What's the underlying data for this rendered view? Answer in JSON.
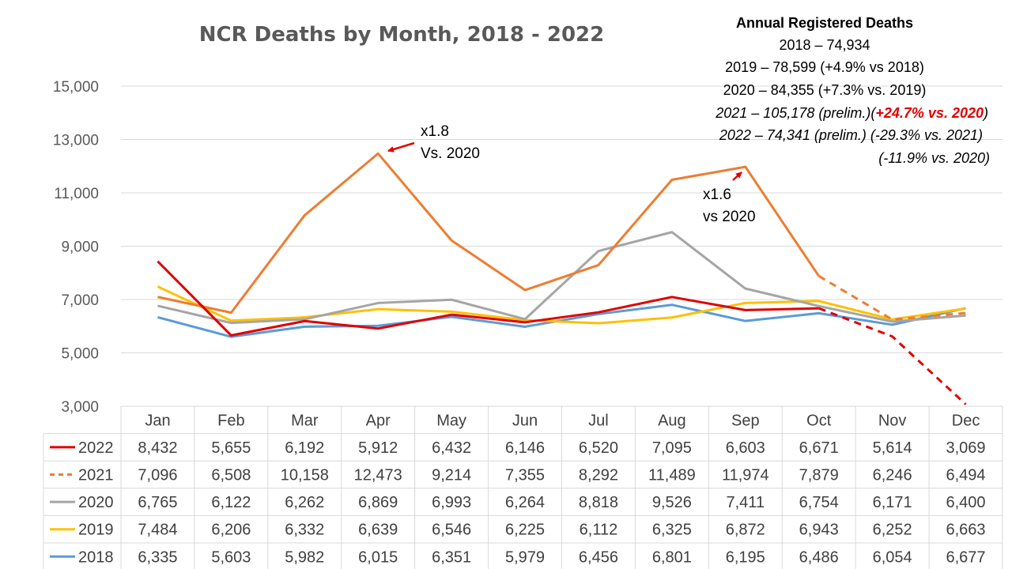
{
  "chart_data": {
    "type": "line",
    "title": "NCR Deaths by Month, 2018 - 2022",
    "categories": [
      "Jan",
      "Feb",
      "Mar",
      "Apr",
      "May",
      "Jun",
      "Jul",
      "Aug",
      "Sep",
      "Oct",
      "Nov",
      "Dec"
    ],
    "ylim": [
      3000,
      15000
    ],
    "yticks": [
      3000,
      5000,
      7000,
      9000,
      11000,
      13000,
      15000
    ],
    "ytick_labels": [
      "3,000",
      "5,000",
      "7,000",
      "9,000",
      "11,000",
      "13,000",
      "15,000"
    ],
    "grid": true,
    "legend_placement": "bottom data table",
    "series": [
      {
        "name": "2022",
        "color": "#E00000",
        "dashed_from_index": 9,
        "values": [
          8432,
          5655,
          6192,
          5912,
          6432,
          6146,
          6520,
          7095,
          6603,
          6671,
          5614,
          3069
        ],
        "labels": [
          "8,432",
          "5,655",
          "6,192",
          "5,912",
          "6,432",
          "6,146",
          "6,520",
          "7,095",
          "6,603",
          "6,671",
          "5,614",
          "3,069"
        ]
      },
      {
        "name": "2021",
        "color": "#ED7D31",
        "dashed_from_index": 9,
        "values": [
          7096,
          6508,
          10158,
          12473,
          9214,
          7355,
          8292,
          11489,
          11974,
          7879,
          6246,
          6494
        ],
        "labels": [
          "7,096",
          "6,508",
          "10,158",
          "12,473",
          "9,214",
          "7,355",
          "8,292",
          "11,489",
          "11,974",
          "7,879",
          "6,246",
          "6,494"
        ]
      },
      {
        "name": "2020",
        "color": "#A5A5A5",
        "values": [
          6765,
          6122,
          6262,
          6869,
          6993,
          6264,
          8818,
          9526,
          7411,
          6754,
          6171,
          6400
        ],
        "labels": [
          "6,765",
          "6,122",
          "6,262",
          "6,869",
          "6,993",
          "6,264",
          "8,818",
          "9,526",
          "7,411",
          "6,754",
          "6,171",
          "6,400"
        ]
      },
      {
        "name": "2019",
        "color": "#FFC000",
        "values": [
          7484,
          6206,
          6332,
          6639,
          6546,
          6225,
          6112,
          6325,
          6872,
          6943,
          6252,
          6663
        ],
        "labels": [
          "7,484",
          "6,206",
          "6,332",
          "6,639",
          "6,546",
          "6,225",
          "6,112",
          "6,325",
          "6,872",
          "6,943",
          "6,252",
          "6,663"
        ]
      },
      {
        "name": "2018",
        "color": "#5B9BD5",
        "values": [
          6335,
          5603,
          5982,
          6015,
          6351,
          5979,
          6456,
          6801,
          6195,
          6486,
          6054,
          6677
        ],
        "labels": [
          "6,335",
          "5,603",
          "5,982",
          "6,015",
          "6,351",
          "5,979",
          "6,456",
          "6,801",
          "6,195",
          "6,486",
          "6,054",
          "6,677"
        ]
      }
    ],
    "annotations": [
      {
        "id": "apr",
        "lines": [
          "x1.8",
          "Vs. 2020"
        ],
        "target_category": "Apr",
        "target_value": 12473
      },
      {
        "id": "sep",
        "lines": [
          "x1.6",
          "vs 2020"
        ],
        "target_category": "Sep",
        "target_value": 11974
      }
    ]
  },
  "info_box": {
    "heading": "Annual Registered Deaths",
    "line_2018": "2018 – 74,934",
    "line_2019": "2019 – 78,599 (+4.9% vs 2018)",
    "line_2020": "2020 – 84,355 (+7.3% vs. 2019)",
    "line_2021_pre": "2021 – 105,178 (prelim.)(",
    "line_2021_highlight": "+24.7% vs. 2020",
    "line_2021_post": ")",
    "line_2022": "2022 – 74,341 (prelim.) (-29.3% vs. 2021)",
    "line_2022b": "(-11.9% vs. 2020)",
    "highlight_color": "#E00000"
  }
}
